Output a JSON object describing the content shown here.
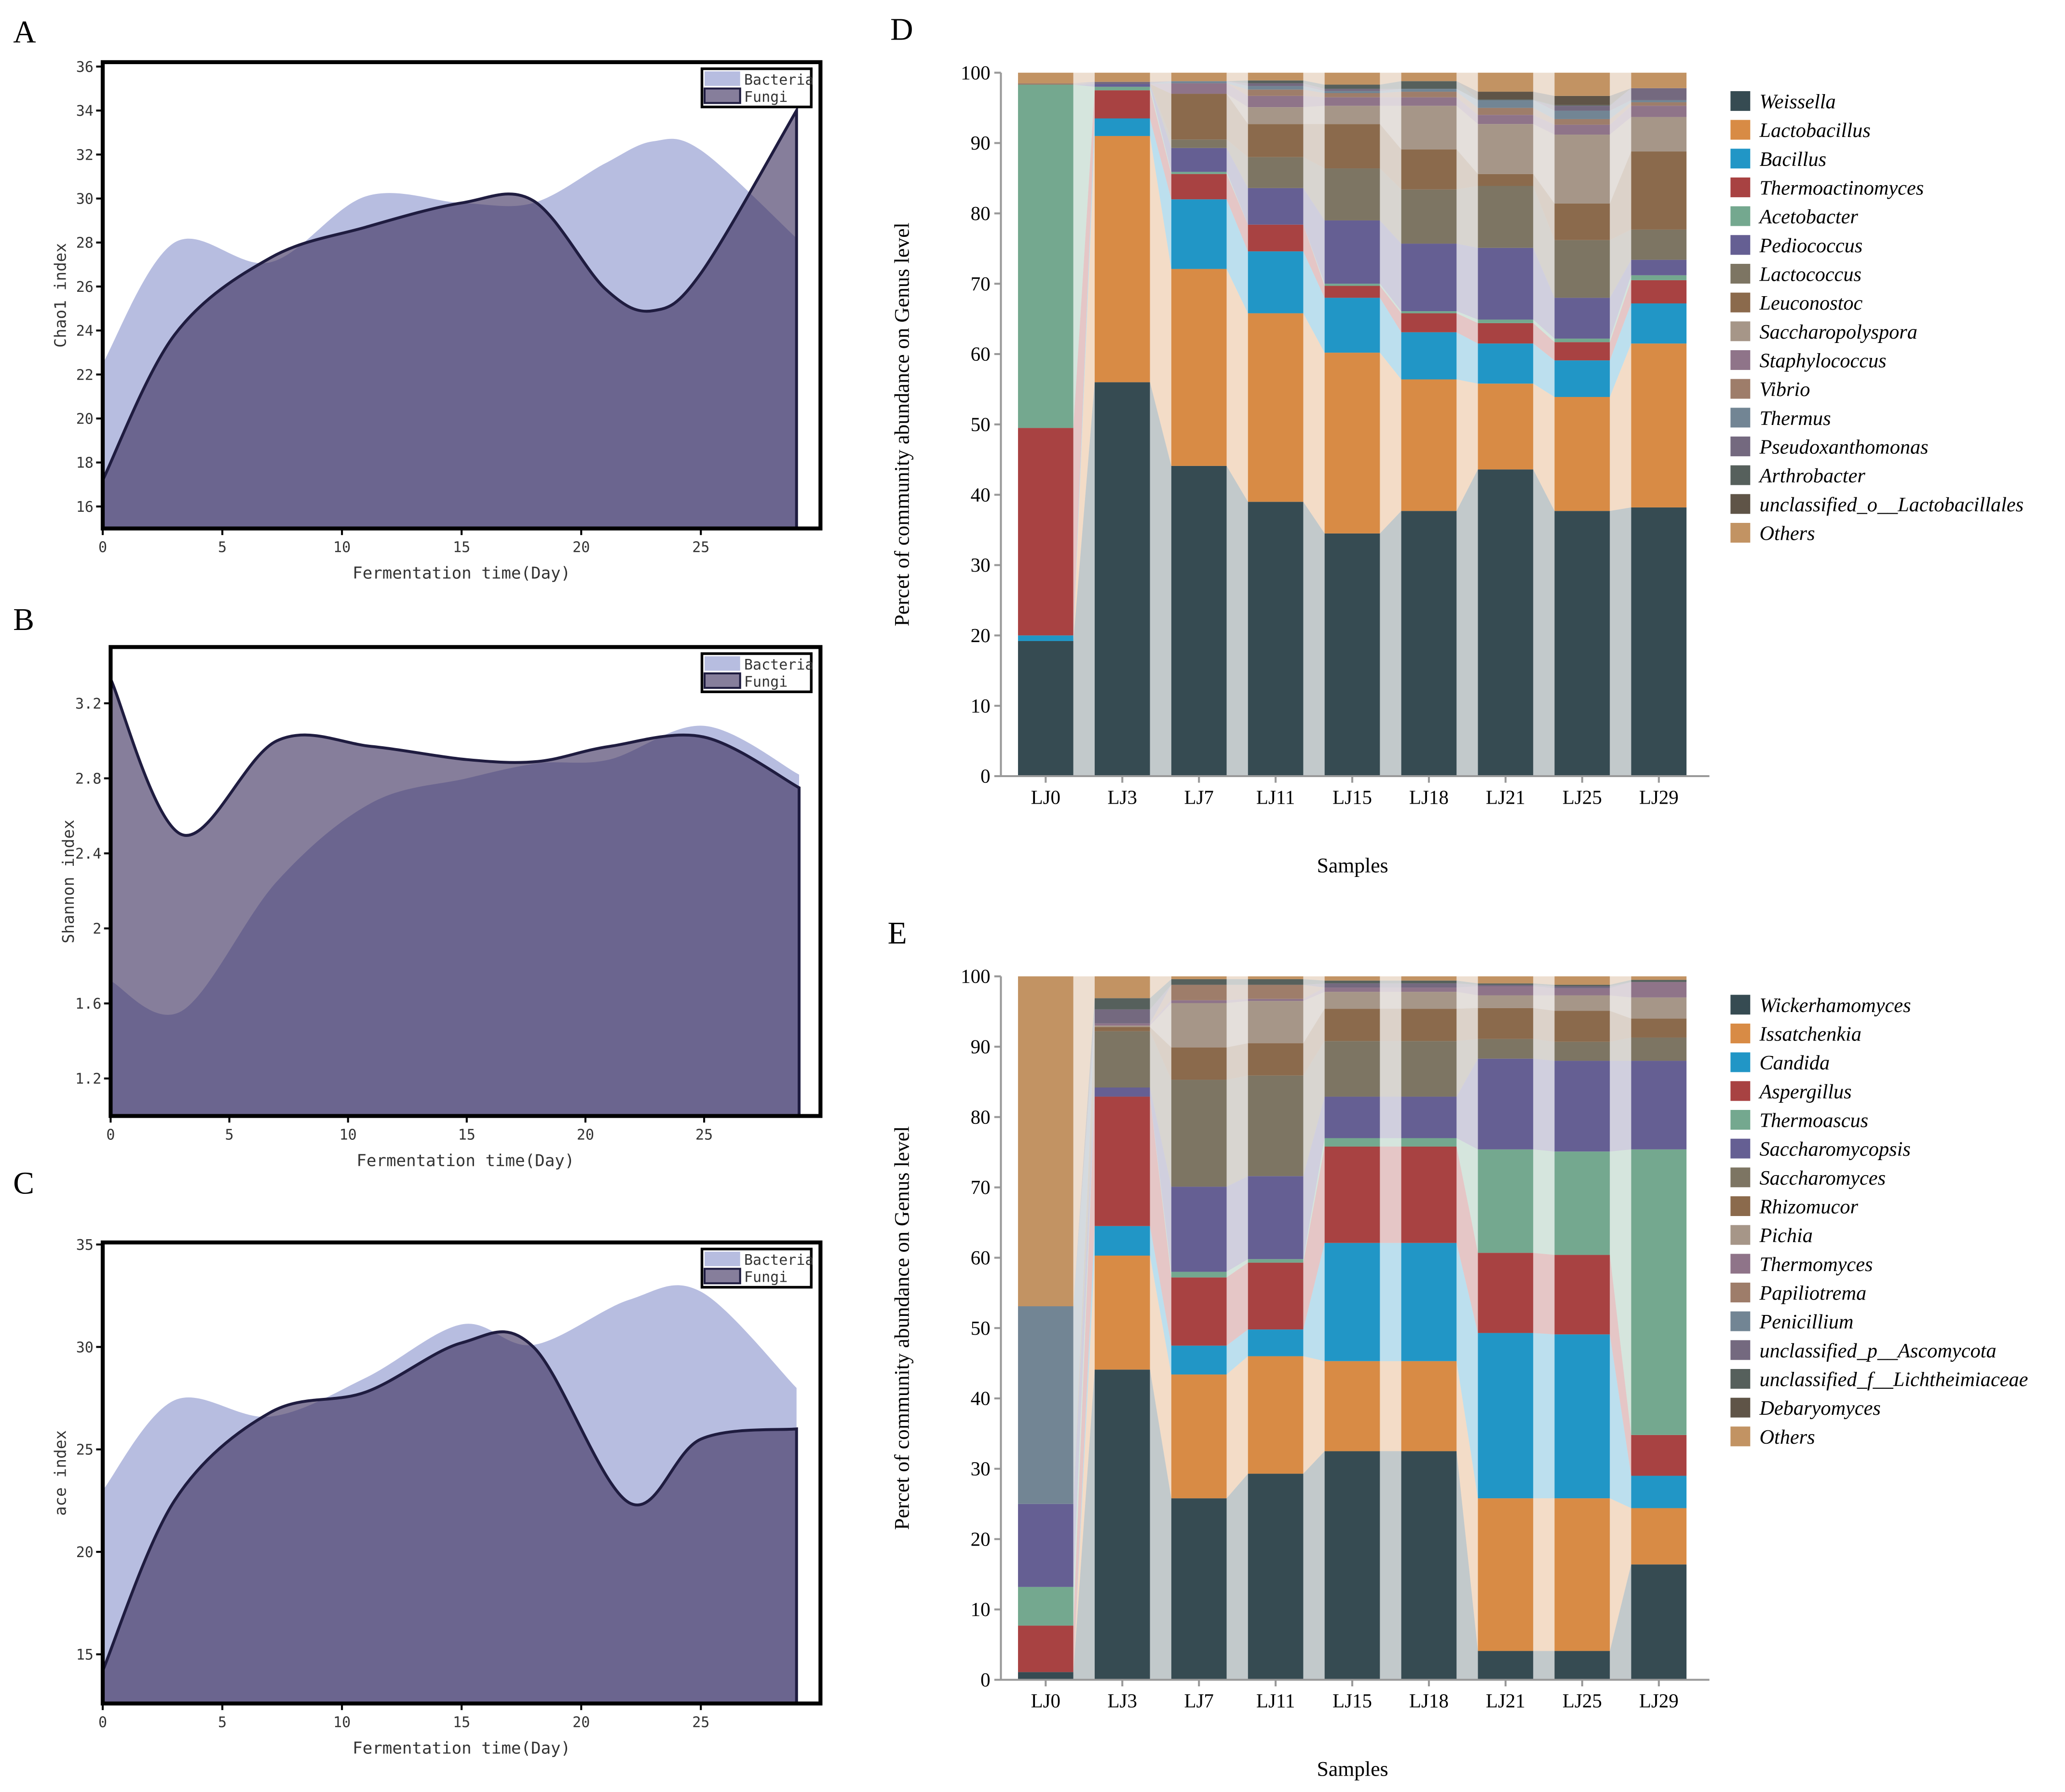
{
  "panels": {
    "A": "A",
    "B": "B",
    "C": "C",
    "D": "D",
    "E": "E"
  },
  "chart_data": [
    {
      "panel": "A",
      "type": "area",
      "xlabel": "Fermentation time(Day)",
      "ylabel": "Chao1 index",
      "xlim": [
        0,
        30
      ],
      "ylim": [
        15,
        36.2
      ],
      "xticks": [
        0,
        5,
        10,
        15,
        20,
        25
      ],
      "yticks": [
        16,
        18,
        20,
        22,
        24,
        26,
        28,
        30,
        32,
        34,
        36
      ],
      "legend": "top-right",
      "x": [
        0,
        3,
        7,
        11,
        15,
        18,
        21,
        23,
        25,
        29
      ],
      "series": [
        {
          "name": "Bacteria",
          "color": "#b7bde0",
          "values": [
            22.5,
            28.0,
            27.1,
            30.1,
            29.8,
            29.8,
            31.6,
            32.6,
            32.2,
            28.2
          ]
        },
        {
          "name": "Fungi",
          "color": "#3c2e5e",
          "values": [
            17.2,
            23.8,
            27.3,
            28.7,
            29.8,
            29.9,
            25.9,
            24.9,
            26.6,
            34.0
          ]
        }
      ]
    },
    {
      "panel": "B",
      "type": "area",
      "xlabel": "Fermentation time(Day)",
      "ylabel": "Shannon index",
      "xlim": [
        0,
        29.9
      ],
      "ylim": [
        1.0,
        3.5
      ],
      "xticks": [
        0,
        5,
        10,
        15,
        20,
        25
      ],
      "yticks": [
        1.2,
        1.6,
        2.0,
        2.4,
        2.8,
        3.2
      ],
      "legend": "top-right",
      "x": [
        0,
        3,
        7,
        11,
        15,
        18,
        21,
        25,
        29
      ],
      "series": [
        {
          "name": "Bacteria",
          "color": "#b7bde0",
          "values": [
            1.72,
            1.56,
            2.25,
            2.67,
            2.8,
            2.88,
            2.9,
            3.08,
            2.82
          ]
        },
        {
          "name": "Fungi",
          "color": "#3c2e5e",
          "values": [
            3.33,
            2.5,
            3.0,
            2.97,
            2.9,
            2.89,
            2.97,
            3.02,
            2.75
          ]
        }
      ]
    },
    {
      "panel": "C",
      "type": "area",
      "xlabel": "Fermentation time(Day)",
      "ylabel": "ace index",
      "xlim": [
        0,
        30
      ],
      "ylim": [
        12.6,
        35.1
      ],
      "xticks": [
        0,
        5,
        10,
        15,
        20,
        25
      ],
      "yticks": [
        15,
        20,
        25,
        30,
        35
      ],
      "legend": "top-right",
      "x": [
        0,
        3,
        7,
        11,
        15,
        18,
        22,
        25,
        29
      ],
      "series": [
        {
          "name": "Bacteria",
          "color": "#b7bde0",
          "values": [
            23.0,
            27.4,
            26.6,
            28.5,
            31.1,
            30.1,
            32.3,
            32.7,
            28.0
          ]
        },
        {
          "name": "Fungi",
          "color": "#3c2e5e",
          "values": [
            14.2,
            22.5,
            26.8,
            27.8,
            30.2,
            30.0,
            22.4,
            25.5,
            26.0
          ]
        }
      ]
    },
    {
      "panel": "D",
      "type": "bar",
      "stacked": true,
      "xlabel": "Samples",
      "ylabel": "Percet of community abundance on Genus level",
      "ylim": [
        0,
        100
      ],
      "yticks": [
        0,
        10,
        20,
        30,
        40,
        50,
        60,
        70,
        80,
        90,
        100
      ],
      "legend": "right",
      "categories": [
        "LJ0",
        "LJ3",
        "LJ7",
        "LJ11",
        "LJ15",
        "LJ18",
        "LJ21",
        "LJ25",
        "LJ29"
      ],
      "series": [
        {
          "name": "Weissella",
          "color": "#364b52",
          "values": [
            19.2,
            56,
            44.1,
            39,
            34.5,
            37.7,
            43.6,
            37.7,
            38.2
          ]
        },
        {
          "name": "Lactobacillus",
          "color": "#d88b45",
          "values": [
            0,
            35,
            28,
            26.8,
            25.7,
            18.7,
            12.2,
            16.2,
            23.3
          ]
        },
        {
          "name": "Bacillus",
          "color": "#2196c6",
          "values": [
            0.8,
            2.5,
            9.9,
            8.8,
            7.8,
            6.7,
            5.7,
            5.2,
            5.7
          ]
        },
        {
          "name": "Thermoactinomyces",
          "color": "#a84242",
          "values": [
            29.5,
            4,
            3.6,
            3.8,
            1.7,
            2.7,
            2.9,
            2.6,
            3.3
          ]
        },
        {
          "name": "Acetobacter",
          "color": "#74a88f",
          "values": [
            48.8,
            0.5,
            0.3,
            0,
            0.3,
            0.3,
            0.5,
            0.5,
            0.7
          ]
        },
        {
          "name": "Pediococcus",
          "color": "#655f93",
          "values": [
            0,
            0.4,
            3.4,
            5.2,
            9,
            9.6,
            10.2,
            5.8,
            2.2
          ]
        },
        {
          "name": "Lactococcus",
          "color": "#7d7563",
          "values": [
            0,
            0,
            1.2,
            4.4,
            7.4,
            7.7,
            8.8,
            8.2,
            4.3
          ]
        },
        {
          "name": "Leuconostoc",
          "color": "#8b6a4c",
          "values": [
            0,
            0,
            6.5,
            4.7,
            6.3,
            5.7,
            1.7,
            5.2,
            11.1
          ]
        },
        {
          "name": "Saccharopolyspora",
          "color": "#a69688",
          "values": [
            0,
            0,
            0,
            2.4,
            2.6,
            6.2,
            7.1,
            9.8,
            4.9
          ]
        },
        {
          "name": "Staphylococcus",
          "color": "#8f7489",
          "values": [
            0,
            0,
            1.5,
            1.6,
            1.2,
            1.2,
            1.3,
            1.4,
            1.6
          ]
        },
        {
          "name": "Vibrio",
          "color": "#9e7d6a",
          "values": [
            0.2,
            0,
            0,
            0.9,
            0.6,
            0.8,
            1.0,
            0.8,
            0.5
          ]
        },
        {
          "name": "Thermus",
          "color": "#728594",
          "values": [
            0,
            0,
            0.3,
            0.5,
            0.3,
            0.4,
            1.1,
            1.2,
            0.3
          ]
        },
        {
          "name": "Pseudoxanthomonas",
          "color": "#74697f",
          "values": [
            0,
            0.3,
            0,
            0.4,
            0.3,
            0,
            0,
            0.7,
            1.7
          ]
        },
        {
          "name": "Arthrobacter",
          "color": "#56605c",
          "values": [
            0,
            0,
            0,
            0.4,
            0.6,
            1.1,
            0.1,
            0.1,
            0
          ]
        },
        {
          "name": "unclassified_o__Lactobacillales",
          "color": "#5f5447",
          "values": [
            0,
            0,
            0,
            0,
            0,
            0,
            1.1,
            1.3,
            0
          ]
        },
        {
          "name": "Others",
          "color": "#c29363",
          "values": [
            1.5,
            1.3,
            1.2,
            1.1,
            1.7,
            1.2,
            2.7,
            3.3,
            2.2
          ]
        }
      ]
    },
    {
      "panel": "E",
      "type": "bar",
      "stacked": true,
      "xlabel": "Samples",
      "ylabel": "Percet of community abundance on Genus level",
      "ylim": [
        0,
        100
      ],
      "yticks": [
        0,
        10,
        20,
        30,
        40,
        50,
        60,
        70,
        80,
        90,
        100
      ],
      "legend": "right",
      "categories": [
        "LJ0",
        "LJ3",
        "LJ7",
        "LJ11",
        "LJ15",
        "LJ18",
        "LJ21",
        "LJ25",
        "LJ29"
      ],
      "series": [
        {
          "name": "Wickerhamomyces",
          "color": "#364b52",
          "values": [
            1.1,
            44.1,
            25.8,
            29.3,
            32.5,
            32.5,
            4.1,
            4.1,
            16.4
          ]
        },
        {
          "name": "Issatchenkia",
          "color": "#d88b45",
          "values": [
            0,
            16.2,
            17.6,
            16.7,
            12.8,
            12.8,
            21.7,
            21.7,
            8
          ]
        },
        {
          "name": "Candida",
          "color": "#2196c6",
          "values": [
            0,
            4.2,
            4.1,
            3.8,
            16.8,
            16.8,
            23.5,
            23.3,
            4.6
          ]
        },
        {
          "name": "Aspergillus",
          "color": "#a84242",
          "values": [
            6.6,
            18.4,
            9.7,
            9.5,
            13.7,
            13.7,
            11.4,
            11.3,
            5.8
          ]
        },
        {
          "name": "Thermoascus",
          "color": "#74a88f",
          "values": [
            5.5,
            0,
            0.8,
            0.5,
            1.2,
            1.2,
            14.7,
            14.7,
            40.6
          ]
        },
        {
          "name": "Saccharomycopsis",
          "color": "#655f93",
          "values": [
            11.8,
            1.3,
            12.1,
            11.8,
            5.9,
            5.9,
            12.9,
            12.9,
            12.6
          ]
        },
        {
          "name": "Saccharomyces",
          "color": "#7d7563",
          "values": [
            0,
            8,
            15.2,
            14.3,
            7.9,
            7.9,
            2.8,
            2.7,
            3.3
          ]
        },
        {
          "name": "Rhizomucor",
          "color": "#8b6a4c",
          "values": [
            0,
            0.6,
            4.6,
            4.6,
            4.6,
            4.6,
            4.4,
            4.4,
            2.7
          ]
        },
        {
          "name": "Pichia",
          "color": "#a69688",
          "values": [
            0,
            0.2,
            6.3,
            6,
            2.4,
            2.4,
            1.8,
            2.2,
            3
          ]
        },
        {
          "name": "Thermomyces",
          "color": "#8f7489",
          "values": [
            0,
            0.3,
            0.4,
            0.3,
            0.6,
            0.6,
            1.3,
            1.0,
            2.2
          ]
        },
        {
          "name": "Papiliotrema",
          "color": "#9e7d6a",
          "values": [
            0,
            0,
            2.2,
            2,
            0,
            0,
            0,
            0,
            0
          ]
        },
        {
          "name": "Penicillium",
          "color": "#728594",
          "values": [
            28.1,
            0,
            0,
            0,
            0,
            0,
            0,
            0,
            0
          ]
        },
        {
          "name": "unclassified_p__Ascomycota",
          "color": "#74697f",
          "values": [
            0,
            2,
            0,
            0,
            0.6,
            0.6,
            0.2,
            0.3,
            0
          ]
        },
        {
          "name": "unclassified_f__Lichtheimiaceae",
          "color": "#56605c",
          "values": [
            0,
            1.6,
            0.8,
            0.8,
            0.4,
            0.4,
            0.2,
            0.2,
            0.3
          ]
        },
        {
          "name": "Debaryomyces",
          "color": "#5f5447",
          "values": [
            0,
            0,
            0,
            0,
            0,
            0,
            0,
            0,
            0
          ]
        },
        {
          "name": "Others",
          "color": "#c29363",
          "values": [
            46.9,
            3.1,
            0.4,
            0.4,
            0.6,
            0.6,
            1.0,
            1.2,
            0.5
          ]
        }
      ]
    }
  ]
}
